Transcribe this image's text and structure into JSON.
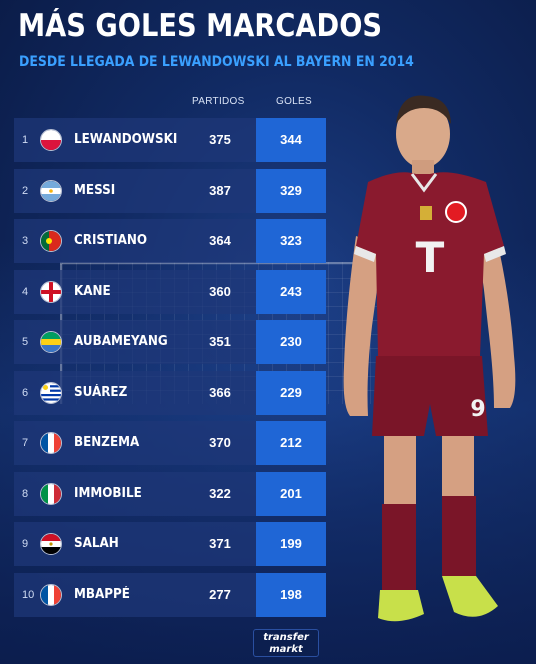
{
  "title": "MÁS GOLES MARCADOS",
  "subtitle": "DESDE LLEGADA DE LEWANDOWSKI AL BAYERN EN 2014",
  "columns": {
    "partidos": "PARTIDOS",
    "goles": "GOLES"
  },
  "players": [
    {
      "rank": "1",
      "name": "LEWANDOWSKI",
      "partidos": "375",
      "goles": "344",
      "flag": "poland-flag-icon"
    },
    {
      "rank": "2",
      "name": "MESSI",
      "partidos": "387",
      "goles": "329",
      "flag": "argentina-flag-icon"
    },
    {
      "rank": "3",
      "name": "CRISTIANO",
      "partidos": "364",
      "goles": "323",
      "flag": "portugal-flag-icon"
    },
    {
      "rank": "4",
      "name": "KANE",
      "partidos": "360",
      "goles": "243",
      "flag": "england-flag-icon"
    },
    {
      "rank": "5",
      "name": "AUBAMEYANG",
      "partidos": "351",
      "goles": "230",
      "flag": "gabon-flag-icon"
    },
    {
      "rank": "6",
      "name": "SUÁREZ",
      "partidos": "366",
      "goles": "229",
      "flag": "uruguay-flag-icon"
    },
    {
      "rank": "7",
      "name": "BENZEMA",
      "partidos": "370",
      "goles": "212",
      "flag": "france-flag-icon"
    },
    {
      "rank": "8",
      "name": "IMMOBILE",
      "partidos": "322",
      "goles": "201",
      "flag": "italy-flag-icon"
    },
    {
      "rank": "9",
      "name": "SALAH",
      "partidos": "371",
      "goles": "199",
      "flag": "egypt-flag-icon"
    },
    {
      "rank": "10",
      "name": "MBAPPÉ",
      "partidos": "277",
      "goles": "198",
      "flag": "france-flag-icon"
    }
  ],
  "player_jersey": {
    "sponsor": "T",
    "number": "9"
  },
  "logo": {
    "line1": "transfer",
    "line2": "markt"
  },
  "colors": {
    "accent": "#3aa0ff",
    "goles_cell": "#1f66d6",
    "jersey": "#8a1a2e"
  }
}
